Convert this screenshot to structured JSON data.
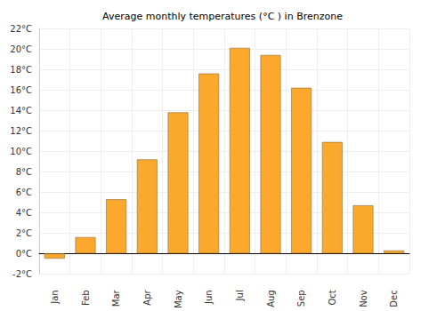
{
  "chart_data": {
    "type": "bar",
    "title": "Average monthly temperatures (°C ) in Brenzone",
    "categories": [
      "Jan",
      "Feb",
      "Mar",
      "Apr",
      "May",
      "Jun",
      "Jul",
      "Aug",
      "Sep",
      "Oct",
      "Nov",
      "Dec"
    ],
    "values": [
      -0.5,
      1.6,
      5.3,
      9.2,
      13.8,
      17.6,
      20.1,
      19.4,
      16.2,
      10.9,
      4.7,
      0.3
    ],
    "color": "#fba92c",
    "ylim": [
      -2,
      22
    ],
    "yticks": [
      {
        "value": -2,
        "label": "-2°C"
      },
      {
        "value": 0,
        "label": "0°C"
      },
      {
        "value": 2,
        "label": "2°C"
      },
      {
        "value": 4,
        "label": "4°C"
      },
      {
        "value": 6,
        "label": "6°C"
      },
      {
        "value": 8,
        "label": "8°C"
      },
      {
        "value": 10,
        "label": "10°C"
      },
      {
        "value": 12,
        "label": "12°C"
      },
      {
        "value": 14,
        "label": "14°C"
      },
      {
        "value": 16,
        "label": "16°C"
      },
      {
        "value": 18,
        "label": "18°C"
      },
      {
        "value": 20,
        "label": "20°C"
      },
      {
        "value": 22,
        "label": "22°C"
      }
    ],
    "grid": true
  }
}
